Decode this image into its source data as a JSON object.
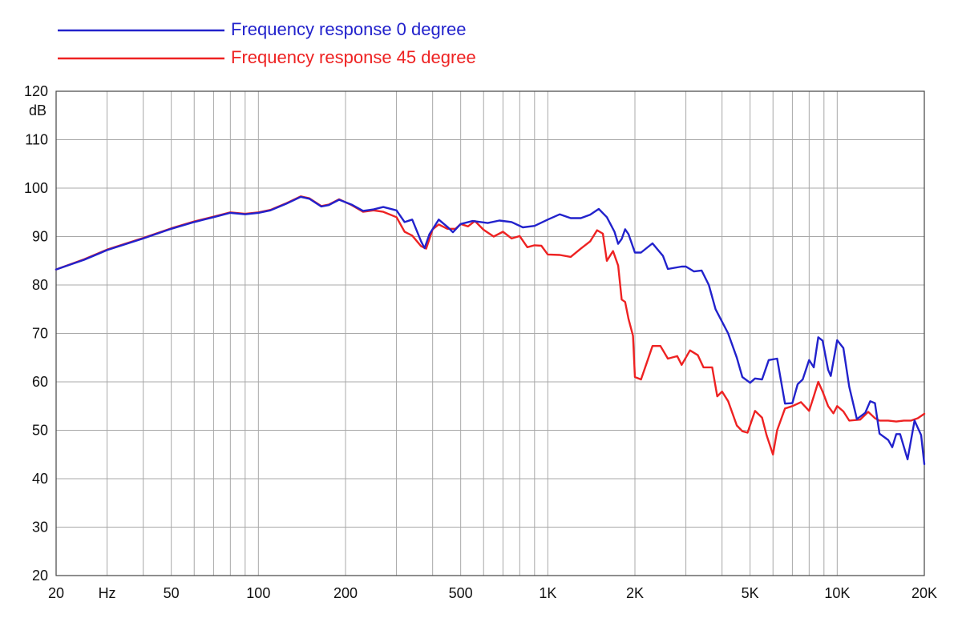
{
  "chart_data": {
    "type": "line",
    "title": "",
    "xlabel": "",
    "ylabel": "",
    "y_unit_label": "dB",
    "x_unit_label": "Hz",
    "x_scale": "log",
    "xlim": [
      20,
      20000
    ],
    "ylim": [
      20,
      120
    ],
    "grid": true,
    "legend_position": "top-left",
    "y_ticks": [
      20,
      30,
      40,
      50,
      60,
      70,
      80,
      90,
      100,
      110,
      120
    ],
    "x_tick_labels": [
      {
        "value": 20,
        "label": "20"
      },
      {
        "value": 50,
        "label": "50"
      },
      {
        "value": 100,
        "label": "100"
      },
      {
        "value": 200,
        "label": "200"
      },
      {
        "value": 500,
        "label": "500"
      },
      {
        "value": 1000,
        "label": "1K"
      },
      {
        "value": 2000,
        "label": "2K"
      },
      {
        "value": 5000,
        "label": "5K"
      },
      {
        "value": 10000,
        "label": "10K"
      },
      {
        "value": 20000,
        "label": "20K"
      }
    ],
    "x_grid": [
      20,
      30,
      40,
      50,
      60,
      70,
      80,
      90,
      100,
      200,
      300,
      400,
      500,
      600,
      700,
      800,
      900,
      1000,
      2000,
      3000,
      4000,
      5000,
      6000,
      7000,
      8000,
      9000,
      10000,
      20000
    ],
    "series": [
      {
        "name": "Frequency response 0 degree",
        "color": "#2222cc",
        "points": [
          [
            20,
            83.2
          ],
          [
            25,
            85.2
          ],
          [
            30,
            87.2
          ],
          [
            40,
            89.6
          ],
          [
            50,
            91.6
          ],
          [
            60,
            93
          ],
          [
            70,
            94
          ],
          [
            80,
            94.9
          ],
          [
            90,
            94.6
          ],
          [
            100,
            94.9
          ],
          [
            110,
            95.4
          ],
          [
            125,
            96.8
          ],
          [
            140,
            98.2
          ],
          [
            150,
            97.8
          ],
          [
            165,
            96.2
          ],
          [
            175,
            96.5
          ],
          [
            190,
            97.6
          ],
          [
            210,
            96.6
          ],
          [
            230,
            95.3
          ],
          [
            250,
            95.6
          ],
          [
            270,
            96.1
          ],
          [
            300,
            95.4
          ],
          [
            320,
            93
          ],
          [
            340,
            93.5
          ],
          [
            365,
            89
          ],
          [
            375,
            87.6
          ],
          [
            390,
            90.5
          ],
          [
            420,
            93.5
          ],
          [
            450,
            92
          ],
          [
            470,
            90.9
          ],
          [
            500,
            92.6
          ],
          [
            550,
            93.2
          ],
          [
            620,
            92.8
          ],
          [
            680,
            93.3
          ],
          [
            750,
            93
          ],
          [
            820,
            91.9
          ],
          [
            900,
            92.2
          ],
          [
            1000,
            93.5
          ],
          [
            1100,
            94.6
          ],
          [
            1200,
            93.8
          ],
          [
            1300,
            93.8
          ],
          [
            1400,
            94.5
          ],
          [
            1500,
            95.7
          ],
          [
            1600,
            94
          ],
          [
            1700,
            91
          ],
          [
            1750,
            88.5
          ],
          [
            1800,
            89.5
          ],
          [
            1850,
            91.5
          ],
          [
            1900,
            90.5
          ],
          [
            2000,
            86.7
          ],
          [
            2100,
            86.7
          ],
          [
            2300,
            88.6
          ],
          [
            2500,
            86
          ],
          [
            2600,
            83.3
          ],
          [
            2900,
            83.8
          ],
          [
            3000,
            83.8
          ],
          [
            3200,
            82.8
          ],
          [
            3400,
            83
          ],
          [
            3600,
            80
          ],
          [
            3800,
            75
          ],
          [
            4200,
            70
          ],
          [
            4500,
            65
          ],
          [
            4700,
            61
          ],
          [
            5000,
            59.8
          ],
          [
            5200,
            60.7
          ],
          [
            5500,
            60.5
          ],
          [
            5800,
            64.5
          ],
          [
            6200,
            64.8
          ],
          [
            6600,
            55.5
          ],
          [
            7000,
            55.6
          ],
          [
            7300,
            59.5
          ],
          [
            7600,
            60.5
          ],
          [
            8000,
            64.5
          ],
          [
            8300,
            63
          ],
          [
            8600,
            69.2
          ],
          [
            8900,
            68.5
          ],
          [
            9300,
            62.5
          ],
          [
            9500,
            61.2
          ],
          [
            10000,
            68.6
          ],
          [
            10500,
            67
          ],
          [
            11000,
            59
          ],
          [
            11700,
            52.3
          ],
          [
            12500,
            53.6
          ],
          [
            13000,
            56
          ],
          [
            13500,
            55.6
          ],
          [
            14000,
            49.3
          ],
          [
            15000,
            48
          ],
          [
            15500,
            46.5
          ],
          [
            16000,
            49.2
          ],
          [
            16500,
            49.2
          ],
          [
            17500,
            44
          ],
          [
            18500,
            52
          ],
          [
            19500,
            49
          ],
          [
            20000,
            43
          ]
        ]
      },
      {
        "name": "Frequency response 45 degree",
        "color": "#ee2222",
        "points": [
          [
            20,
            83.2
          ],
          [
            25,
            85.3
          ],
          [
            30,
            87.3
          ],
          [
            40,
            89.7
          ],
          [
            50,
            91.7
          ],
          [
            60,
            93.1
          ],
          [
            70,
            94.1
          ],
          [
            80,
            95
          ],
          [
            90,
            94.7
          ],
          [
            100,
            95
          ],
          [
            110,
            95.5
          ],
          [
            125,
            96.9
          ],
          [
            140,
            98.3
          ],
          [
            150,
            97.9
          ],
          [
            165,
            96.3
          ],
          [
            175,
            96.6
          ],
          [
            190,
            97.7
          ],
          [
            210,
            96.5
          ],
          [
            230,
            95.1
          ],
          [
            250,
            95.4
          ],
          [
            270,
            95.1
          ],
          [
            300,
            94
          ],
          [
            320,
            91
          ],
          [
            340,
            90.2
          ],
          [
            365,
            88
          ],
          [
            380,
            87.5
          ],
          [
            400,
            91.5
          ],
          [
            420,
            92.5
          ],
          [
            450,
            91.6
          ],
          [
            480,
            91.6
          ],
          [
            500,
            92.6
          ],
          [
            530,
            92.1
          ],
          [
            560,
            93.2
          ],
          [
            600,
            91.4
          ],
          [
            650,
            90
          ],
          [
            700,
            91
          ],
          [
            750,
            89.6
          ],
          [
            800,
            90.1
          ],
          [
            850,
            87.8
          ],
          [
            900,
            88.2
          ],
          [
            950,
            88.1
          ],
          [
            1000,
            86.3
          ],
          [
            1100,
            86.2
          ],
          [
            1200,
            85.8
          ],
          [
            1300,
            87.5
          ],
          [
            1400,
            89
          ],
          [
            1480,
            91.3
          ],
          [
            1550,
            90.6
          ],
          [
            1600,
            85
          ],
          [
            1680,
            87
          ],
          [
            1750,
            84
          ],
          [
            1800,
            77
          ],
          [
            1850,
            76.5
          ],
          [
            1900,
            73
          ],
          [
            1970,
            69.5
          ],
          [
            2000,
            61
          ],
          [
            2100,
            60.5
          ],
          [
            2200,
            64
          ],
          [
            2300,
            67.4
          ],
          [
            2450,
            67.4
          ],
          [
            2600,
            64.8
          ],
          [
            2800,
            65.3
          ],
          [
            2900,
            63.5
          ],
          [
            3100,
            66.5
          ],
          [
            3300,
            65.5
          ],
          [
            3450,
            63
          ],
          [
            3700,
            63
          ],
          [
            3850,
            57
          ],
          [
            4000,
            58
          ],
          [
            4200,
            56
          ],
          [
            4500,
            51
          ],
          [
            4700,
            49.8
          ],
          [
            4900,
            49.5
          ],
          [
            5200,
            54
          ],
          [
            5500,
            52.6
          ],
          [
            5700,
            49
          ],
          [
            6000,
            45
          ],
          [
            6200,
            50
          ],
          [
            6600,
            54.5
          ],
          [
            7000,
            55
          ],
          [
            7500,
            55.8
          ],
          [
            8000,
            54
          ],
          [
            8300,
            57
          ],
          [
            8600,
            60
          ],
          [
            8900,
            58
          ],
          [
            9300,
            55
          ],
          [
            9700,
            53.5
          ],
          [
            10000,
            55
          ],
          [
            10500,
            53.9
          ],
          [
            11000,
            52
          ],
          [
            12000,
            52.2
          ],
          [
            12800,
            53.8
          ],
          [
            13500,
            52.5
          ],
          [
            14000,
            52
          ],
          [
            15000,
            52
          ],
          [
            16000,
            51.8
          ],
          [
            17000,
            52
          ],
          [
            18000,
            52
          ],
          [
            19000,
            52.5
          ],
          [
            20000,
            53.4
          ]
        ]
      }
    ]
  }
}
